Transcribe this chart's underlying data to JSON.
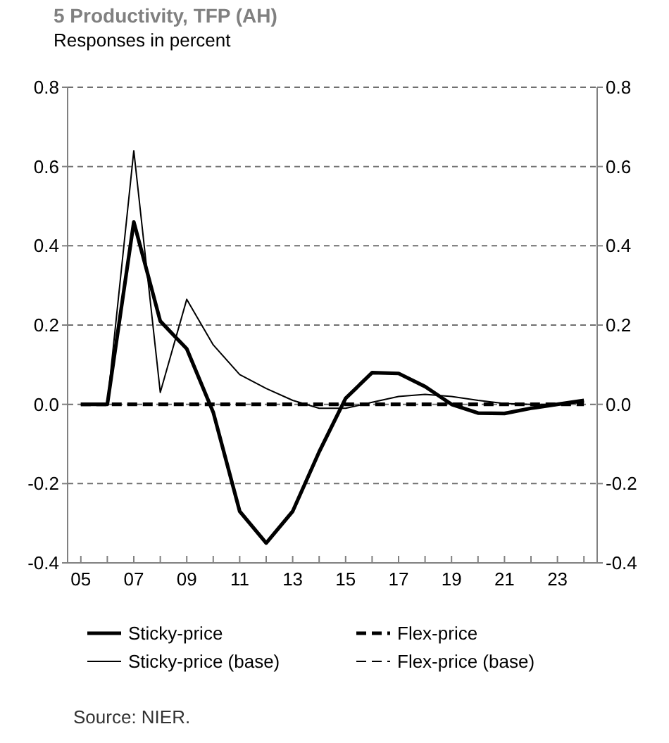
{
  "chart_data": {
    "type": "line",
    "title": "5  Productivity, TFP (AH)",
    "subtitle": "Responses in percent",
    "categories": [
      "05",
      null,
      "07",
      null,
      "09",
      null,
      "11",
      null,
      "13",
      null,
      "15",
      null,
      "17",
      null,
      "19",
      null,
      "21",
      null,
      "23",
      null
    ],
    "series": [
      {
        "name": "Sticky-price",
        "color": "#000000",
        "line_style": "solid",
        "values": [
          0,
          0,
          0.46,
          0.21,
          0.14,
          -0.02,
          -0.27,
          -0.35,
          -0.27,
          -0.12,
          0.015,
          0.08,
          0.078,
          0.045,
          0,
          -0.022,
          -0.023,
          -0.01,
          0,
          0.01
        ]
      },
      {
        "name": "Flex-price",
        "color": "#000000",
        "line_style": "dashed",
        "values": [
          0,
          0,
          0,
          0,
          0,
          0,
          0,
          0,
          0,
          0,
          0,
          0,
          0,
          0,
          0,
          0,
          0,
          0,
          0,
          0
        ]
      },
      {
        "name": "Sticky-price (base)",
        "color": "#000000",
        "line_style": "solid",
        "values": [
          0,
          0,
          0.64,
          0.03,
          0.265,
          0.15,
          0.075,
          0.04,
          0.01,
          -0.01,
          -0.01,
          0.005,
          0.02,
          0.025,
          0.02,
          0.01,
          0.002,
          0,
          0,
          0.005
        ]
      },
      {
        "name": "Flex-price (base)",
        "color": "#000000",
        "line_style": "dashed",
        "values": [
          null,
          null,
          null,
          null,
          null,
          null,
          null,
          null,
          null,
          null,
          null,
          null,
          null,
          null,
          null,
          null,
          null,
          null,
          null,
          null
        ]
      }
    ],
    "ylim": [
      -0.4,
      0.8
    ],
    "yticks": [
      {
        "value": -0.4,
        "label": "-0.4"
      },
      {
        "value": -0.2,
        "label": "-0.2"
      },
      {
        "value": 0,
        "label": "0.0"
      },
      {
        "value": 0.2,
        "label": "0.2"
      },
      {
        "value": 0.4,
        "label": "0.4"
      },
      {
        "value": 0.6,
        "label": "0.6"
      },
      {
        "value": 0.8,
        "label": "0.8"
      }
    ],
    "y2lim": [
      -0.4,
      0.8
    ],
    "y2ticks": [
      {
        "value": -0.4,
        "label": "-0.4"
      },
      {
        "value": -0.2,
        "label": "-0.2"
      },
      {
        "value": 0,
        "label": "0.0"
      },
      {
        "value": 0.2,
        "label": "0.2"
      },
      {
        "value": 0.4,
        "label": "0.4"
      },
      {
        "value": 0.6,
        "label": "0.6"
      },
      {
        "value": 0.8,
        "label": "0.8"
      }
    ],
    "grid": "y",
    "legend": "bottom",
    "annotations": [
      "Source: NIER."
    ]
  }
}
